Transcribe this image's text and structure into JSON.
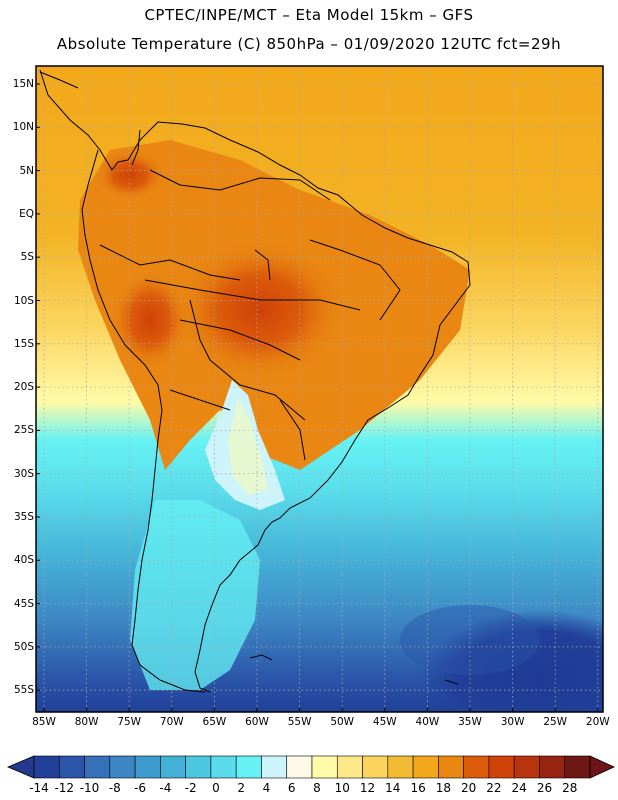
{
  "header": {
    "title_line1": "CPTEC/INPE/MCT –  Eta Model 15km – GFS",
    "title_line2": "Absolute Temperature (C) 850hPa – 01/09/2020 12UTC fct=29h"
  },
  "map": {
    "region": "South America",
    "lat_labels": [
      "15N",
      "10N",
      "5N",
      "EQ",
      "5S",
      "10S",
      "15S",
      "20S",
      "25S",
      "30S",
      "35S",
      "40S",
      "45S",
      "50S",
      "55S"
    ],
    "lon_labels": [
      "85W",
      "80W",
      "75W",
      "70W",
      "65W",
      "60W",
      "55W",
      "50W",
      "45W",
      "40W",
      "35W",
      "30W",
      "25W",
      "20W"
    ]
  },
  "colorbar": {
    "labels": [
      "-14",
      "-12",
      "-10",
      "-8",
      "-6",
      "-4",
      "-2",
      "0",
      "2",
      "4",
      "6",
      "8",
      "10",
      "12",
      "14",
      "16",
      "18",
      "20",
      "22",
      "24",
      "26",
      "28"
    ],
    "colors": [
      "#22409a",
      "#2a55a8",
      "#3670b8",
      "#3d86c4",
      "#3f9ccf",
      "#44b2d8",
      "#4dc6e0",
      "#5adcea",
      "#66f2f4",
      "#cdf4fb",
      "#fff9e8",
      "#fffba8",
      "#fde889",
      "#fbd45d",
      "#f3bb34",
      "#f3a81b",
      "#e98712",
      "#dd5c0b",
      "#cf4208",
      "#b8340e",
      "#962411",
      "#6e1813"
    ],
    "underflow_color": "#243a8c",
    "overflow_color": "#6e1318"
  }
}
